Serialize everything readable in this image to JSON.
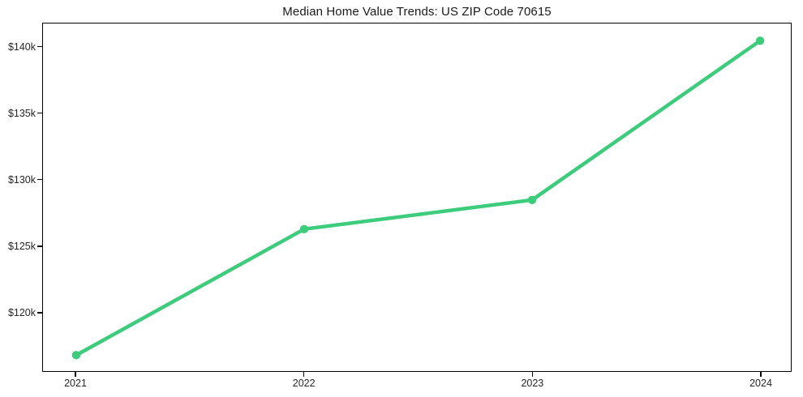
{
  "page": {
    "background_color": "#ffffff",
    "text_color": "#262626",
    "frame_color": "#000000"
  },
  "chart_data": {
    "type": "line",
    "title": "Median Home Value Trends: US ZIP Code 70615",
    "categories": [
      "2021",
      "2022",
      "2023",
      "2024"
    ],
    "series": [
      {
        "name": "Median Home Value",
        "values": [
          116800,
          126300,
          128500,
          140500
        ],
        "color": "#3dcc7c",
        "marker": "circle",
        "line_width": 4.5,
        "marker_radius": 5.2
      }
    ],
    "xlabel": "",
    "ylabel": "",
    "ylim": [
      115600,
      141800
    ],
    "yticks": {
      "values": [
        120000,
        125000,
        130000,
        135000,
        140000
      ],
      "labels": [
        "$120k",
        "$125k",
        "$130k",
        "$135k",
        "$140k"
      ]
    },
    "grid": false,
    "legend": "none"
  }
}
